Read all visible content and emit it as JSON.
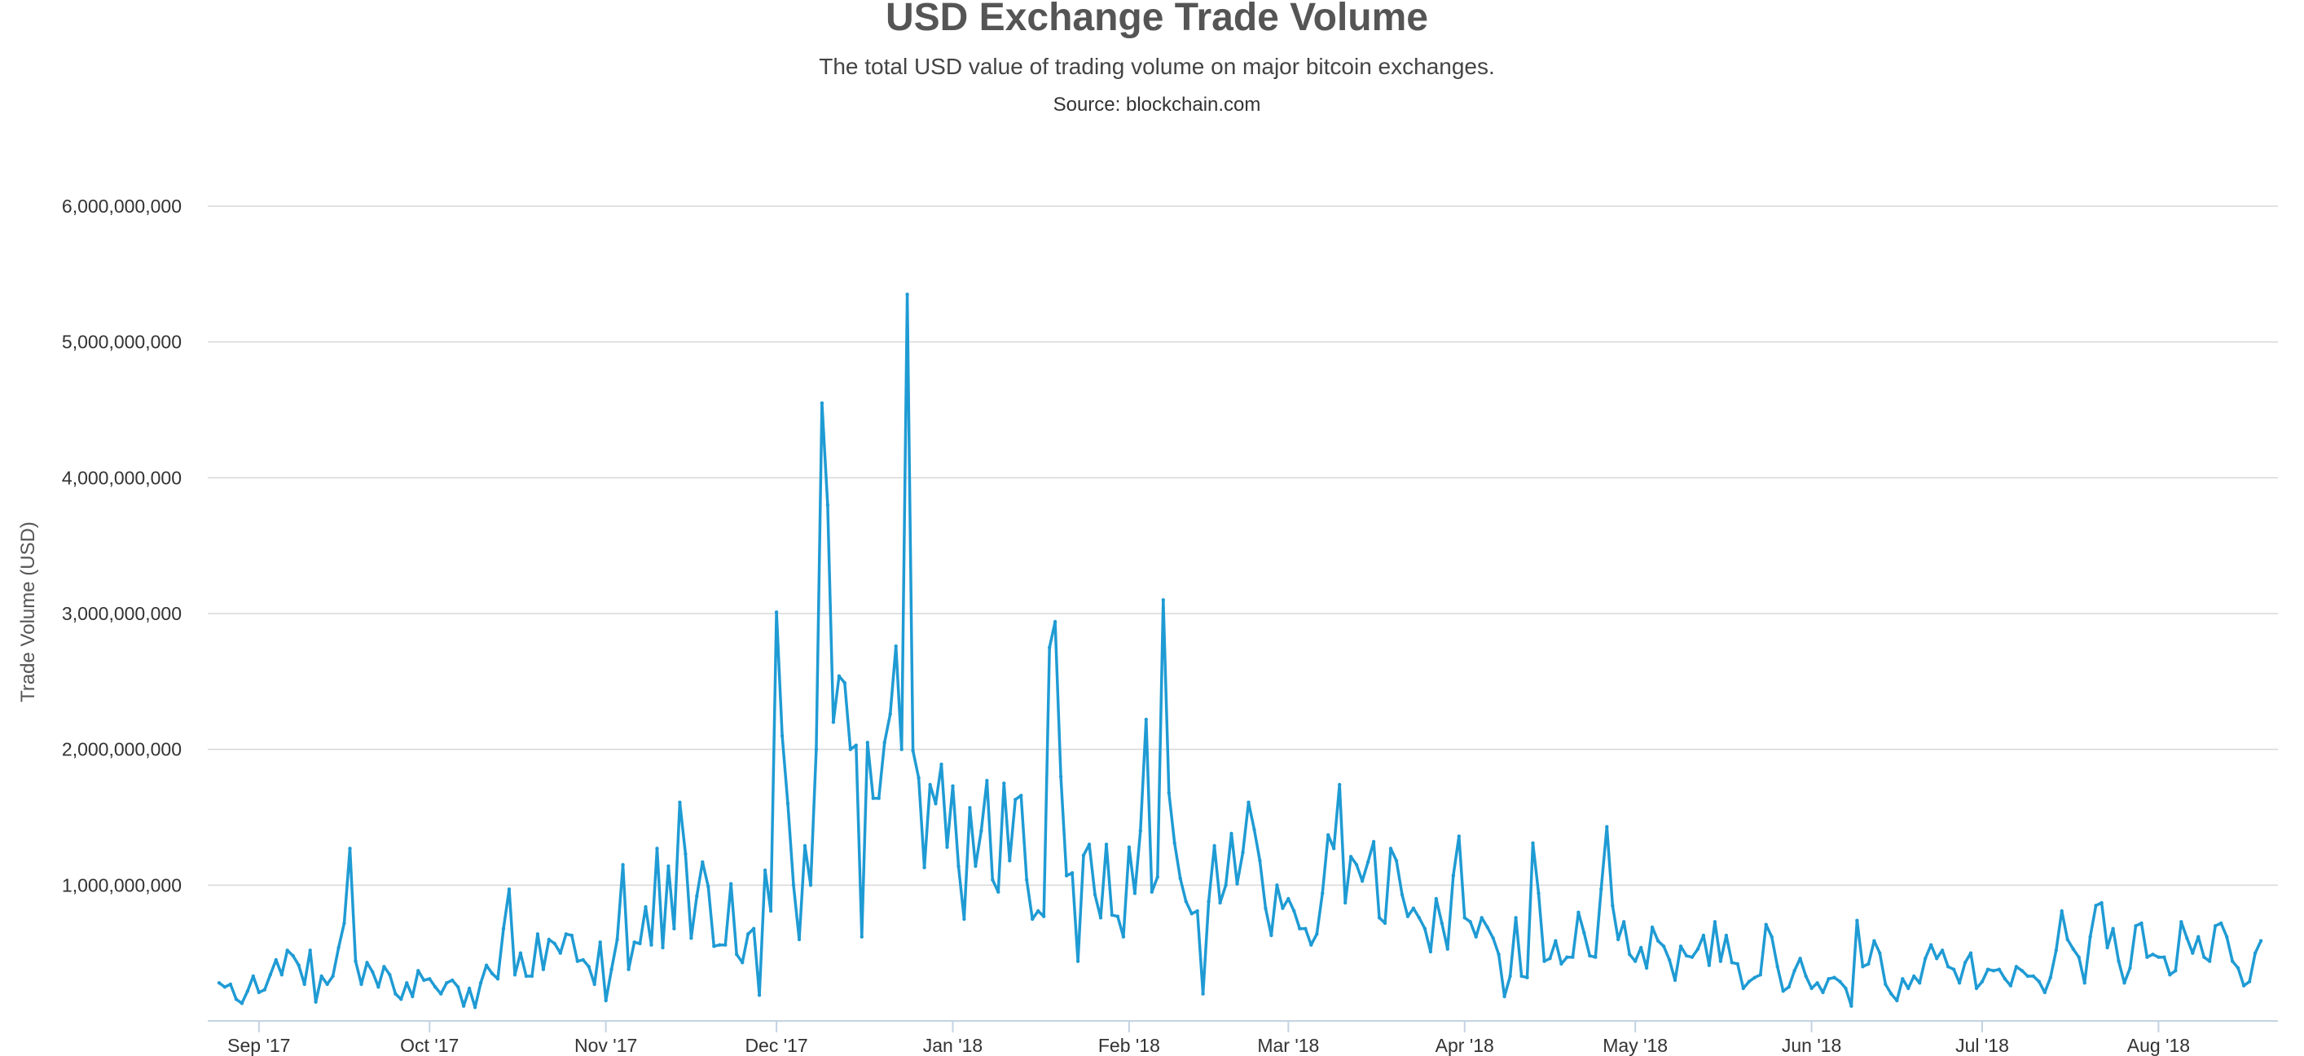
{
  "chart_data": {
    "type": "line",
    "title": "USD Exchange Trade Volume",
    "subtitle": "The total USD value of trading volume on major bitcoin exchanges.",
    "source": "Source: blockchain.com",
    "xlabel": "",
    "ylabel": "Trade Volume (USD)",
    "ylim": [
      0,
      6000000000
    ],
    "yticks": [
      1000000000,
      2000000000,
      3000000000,
      4000000000,
      5000000000,
      6000000000
    ],
    "ytick_labels": [
      "1,000,000,000",
      "2,000,000,000",
      "3,000,000,000",
      "4,000,000,000",
      "5,000,000,000",
      "6,000,000,000"
    ],
    "xlim": [
      "2017-08-23",
      "2018-08-22"
    ],
    "xticks": [
      "2017-09-01",
      "2017-10-01",
      "2017-11-01",
      "2017-12-01",
      "2018-01-01",
      "2018-02-01",
      "2018-03-01",
      "2018-04-01",
      "2018-05-01",
      "2018-06-01",
      "2018-07-01",
      "2018-08-01"
    ],
    "xtick_labels": [
      "Sep '17",
      "Oct '17",
      "Nov '17",
      "Dec '17",
      "Jan '18",
      "Feb '18",
      "Mar '18",
      "Apr '18",
      "May '18",
      "Jun '18",
      "Jul '18",
      "Aug '18"
    ],
    "grid": true,
    "legend": "none",
    "line_color": "#1f9bd4",
    "series": [
      {
        "start_date": "2017-08-25",
        "interval_days": 1,
        "values": [
          280000000,
          250000000,
          270000000,
          160000000,
          130000000,
          220000000,
          330000000,
          210000000,
          230000000,
          340000000,
          450000000,
          340000000,
          520000000,
          480000000,
          410000000,
          270000000,
          520000000,
          140000000,
          330000000,
          270000000,
          330000000,
          540000000,
          720000000,
          1270000000,
          440000000,
          270000000,
          430000000,
          360000000,
          250000000,
          400000000,
          340000000,
          200000000,
          160000000,
          280000000,
          180000000,
          370000000,
          300000000,
          310000000,
          250000000,
          200000000,
          280000000,
          300000000,
          250000000,
          110000000,
          240000000,
          100000000,
          280000000,
          410000000,
          350000000,
          310000000,
          680000000,
          970000000,
          340000000,
          500000000,
          330000000,
          330000000,
          640000000,
          380000000,
          600000000,
          570000000,
          500000000,
          640000000,
          630000000,
          440000000,
          450000000,
          400000000,
          270000000,
          580000000,
          150000000,
          380000000,
          600000000,
          1150000000,
          380000000,
          580000000,
          570000000,
          840000000,
          560000000,
          1270000000,
          540000000,
          1140000000,
          680000000,
          1610000000,
          1230000000,
          610000000,
          920000000,
          1170000000,
          990000000,
          550000000,
          560000000,
          560000000,
          1010000000,
          490000000,
          430000000,
          640000000,
          680000000,
          190000000,
          1110000000,
          810000000,
          3010000000,
          2100000000,
          1600000000,
          1000000000,
          600000000,
          1290000000,
          1000000000,
          2000000000,
          4550000000,
          3800000000,
          2200000000,
          2540000000,
          2490000000,
          2000000000,
          2030000000,
          620000000,
          2050000000,
          1640000000,
          1640000000,
          2050000000,
          2260000000,
          2760000000,
          2000000000,
          5350000000,
          1990000000,
          1790000000,
          1130000000,
          1740000000,
          1600000000,
          1890000000,
          1280000000,
          1730000000,
          1140000000,
          750000000,
          1570000000,
          1140000000,
          1400000000,
          1770000000,
          1040000000,
          950000000,
          1750000000,
          1180000000,
          1630000000,
          1660000000,
          1040000000,
          750000000,
          810000000,
          770000000,
          2750000000,
          2940000000,
          1800000000,
          1070000000,
          1090000000,
          440000000,
          1220000000,
          1300000000,
          930000000,
          760000000,
          1300000000,
          780000000,
          770000000,
          620000000,
          1280000000,
          940000000,
          1400000000,
          2220000000,
          950000000,
          1060000000,
          3100000000,
          1680000000,
          1310000000,
          1050000000,
          880000000,
          790000000,
          810000000,
          200000000,
          880000000,
          1290000000,
          870000000,
          1000000000,
          1380000000,
          1010000000,
          1240000000,
          1610000000,
          1410000000,
          1180000000,
          830000000,
          630000000,
          1000000000,
          830000000,
          900000000,
          810000000,
          680000000,
          680000000,
          560000000,
          640000000,
          940000000,
          1370000000,
          1270000000,
          1740000000,
          870000000,
          1210000000,
          1150000000,
          1030000000,
          1170000000,
          1320000000,
          760000000,
          720000000,
          1270000000,
          1180000000,
          930000000,
          770000000,
          830000000,
          760000000,
          680000000,
          510000000,
          900000000,
          720000000,
          530000000,
          1070000000,
          1360000000,
          760000000,
          730000000,
          620000000,
          760000000,
          690000000,
          610000000,
          490000000,
          180000000,
          330000000,
          760000000,
          330000000,
          320000000,
          1310000000,
          940000000,
          440000000,
          460000000,
          590000000,
          420000000,
          470000000,
          470000000,
          800000000,
          650000000,
          480000000,
          470000000,
          970000000,
          1430000000,
          850000000,
          600000000,
          730000000,
          490000000,
          440000000,
          540000000,
          390000000,
          690000000,
          590000000,
          550000000,
          450000000,
          300000000,
          550000000,
          480000000,
          470000000,
          530000000,
          630000000,
          410000000,
          730000000,
          440000000,
          630000000,
          430000000,
          420000000,
          240000000,
          290000000,
          320000000,
          340000000,
          710000000,
          620000000,
          400000000,
          220000000,
          250000000,
          370000000,
          460000000,
          330000000,
          240000000,
          280000000,
          210000000,
          310000000,
          320000000,
          290000000,
          240000000,
          110000000,
          740000000,
          400000000,
          420000000,
          590000000,
          500000000,
          270000000,
          200000000,
          150000000,
          310000000,
          240000000,
          330000000,
          280000000,
          460000000,
          560000000,
          460000000,
          520000000,
          400000000,
          380000000,
          280000000,
          430000000,
          500000000,
          240000000,
          290000000,
          380000000,
          370000000,
          380000000,
          310000000,
          260000000,
          400000000,
          370000000,
          330000000,
          330000000,
          290000000,
          210000000,
          320000000,
          520000000,
          810000000,
          600000000,
          530000000,
          470000000,
          280000000,
          620000000,
          850000000,
          870000000,
          540000000,
          680000000,
          440000000,
          280000000,
          390000000,
          700000000,
          720000000,
          470000000,
          490000000,
          470000000,
          470000000,
          340000000,
          370000000,
          730000000,
          610000000,
          500000000,
          620000000,
          470000000,
          440000000,
          700000000,
          720000000,
          620000000,
          440000000,
          390000000,
          260000000,
          290000000,
          500000000,
          590000000
        ]
      }
    ]
  }
}
